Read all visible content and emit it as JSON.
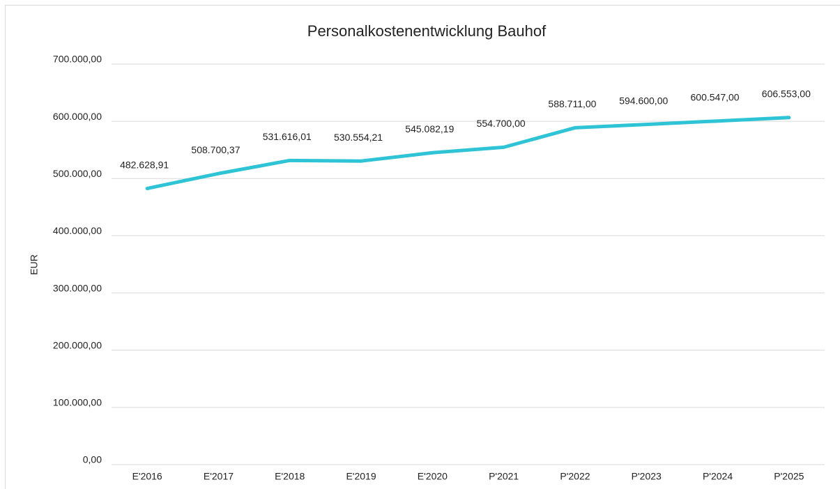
{
  "chart_data": {
    "type": "line",
    "title": "Personalkostenentwicklung Bauhof",
    "y_label": "EUR",
    "categories": [
      "E'2016",
      "E'2017",
      "E'2018",
      "E'2019",
      "E'2020",
      "P'2021",
      "P'2022",
      "P'2023",
      "P'2024",
      "P'2025"
    ],
    "series": [
      {
        "name": "Personalkosten",
        "color": "#2ec4d6",
        "values": [
          482628.91,
          508700.37,
          531616.01,
          530554.21,
          545082.19,
          554700,
          588711,
          594600,
          600547,
          606553
        ],
        "value_labels": [
          "482.628,91",
          "508.700,37",
          "531.616,01",
          "530.554,21",
          "545.082,19",
          "554.700,00",
          "588.711,00",
          "594.600,00",
          "600.547,00",
          "606.553,00"
        ]
      }
    ],
    "ylim": [
      0,
      700000
    ],
    "yticks": [
      {
        "value": 0,
        "label": "0,00"
      },
      {
        "value": 100000,
        "label": "100.000,00"
      },
      {
        "value": 200000,
        "label": "200.000,00"
      },
      {
        "value": 300000,
        "label": "300.000,00"
      },
      {
        "value": 400000,
        "label": "400.000,00"
      },
      {
        "value": 500000,
        "label": "500.000,00"
      },
      {
        "value": 600000,
        "label": "600.000,00"
      },
      {
        "value": 700000,
        "label": "700.000,00"
      }
    ],
    "grid": true,
    "legend": false
  }
}
